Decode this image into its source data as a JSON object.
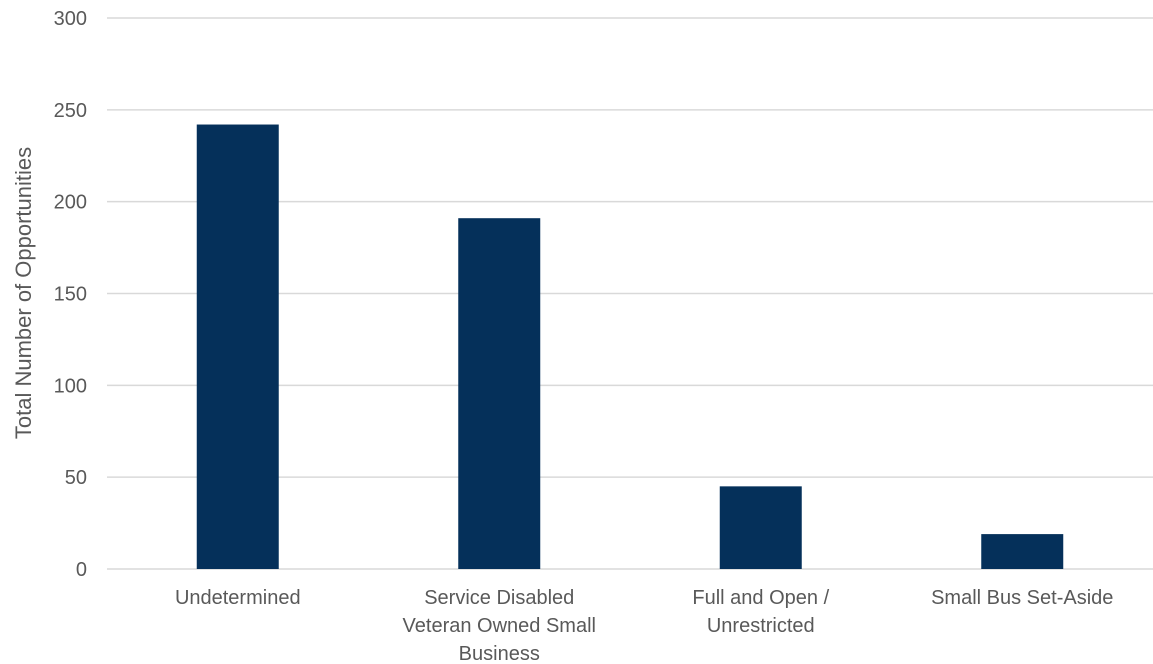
{
  "chart_data": {
    "type": "bar",
    "categories": [
      [
        "Undetermined"
      ],
      [
        "Service Disabled",
        "Veteran Owned Small",
        "Business"
      ],
      [
        "Full and Open /",
        "Unrestricted"
      ],
      [
        "Small Bus Set-Aside"
      ]
    ],
    "values": [
      242,
      191,
      45,
      19
    ],
    "xlabel": "",
    "ylabel": "Total Number of Opportunities",
    "ylim": [
      0,
      300
    ],
    "yticks": [
      0,
      50,
      100,
      150,
      200,
      250,
      300
    ],
    "grid": true,
    "colors": {
      "bar": "#05305A",
      "grid": "#D9D9D9",
      "text": "#595959"
    }
  }
}
